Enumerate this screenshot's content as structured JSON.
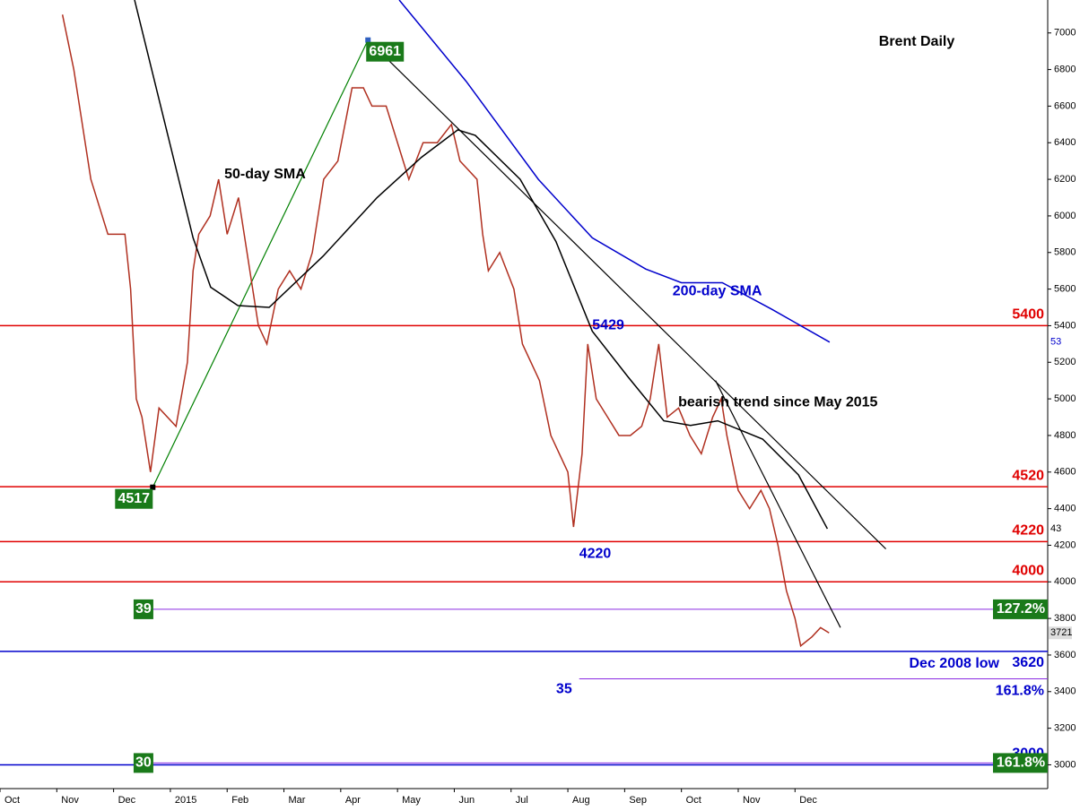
{
  "chart_data": {
    "type": "line",
    "title": "Brent Daily",
    "xlim": [
      0,
      18.45
    ],
    "xticks": [
      {
        "value": 0,
        "label": "Oct"
      },
      {
        "value": 1,
        "label": "Nov"
      },
      {
        "value": 2,
        "label": "Dec"
      },
      {
        "value": 3,
        "label": "2015"
      },
      {
        "value": 4,
        "label": "Feb"
      },
      {
        "value": 5,
        "label": "Mar"
      },
      {
        "value": 6,
        "label": "Apr"
      },
      {
        "value": 7,
        "label": "May"
      },
      {
        "value": 8,
        "label": "Jun"
      },
      {
        "value": 9,
        "label": "Jul"
      },
      {
        "value": 10,
        "label": "Aug"
      },
      {
        "value": 11,
        "label": "Sep"
      },
      {
        "value": 12,
        "label": "Oct"
      },
      {
        "value": 13,
        "label": "Nov"
      },
      {
        "value": 14,
        "label": "Dec"
      }
    ],
    "ylim": [
      2870,
      7180
    ],
    "yticks": [
      3000,
      3200,
      3400,
      3600,
      3800,
      4000,
      4200,
      4400,
      4600,
      4800,
      5000,
      5200,
      5400,
      5600,
      5800,
      6000,
      6200,
      6400,
      6600,
      6800,
      7000
    ],
    "grid": false,
    "series": [
      {
        "color": "#b03020",
        "x": [
          1.1,
          1.3,
          1.6,
          1.9,
          2.2,
          2.3,
          2.4,
          2.5,
          2.65,
          2.8,
          3.1,
          3.3,
          3.4,
          3.5,
          3.7,
          3.85,
          4.0,
          4.2,
          4.35,
          4.55,
          4.7,
          4.9,
          5.1,
          5.3,
          5.5,
          5.7,
          5.95,
          6.2,
          6.4,
          6.55,
          6.8,
          7.0,
          7.2,
          7.45,
          7.7,
          7.95,
          8.1,
          8.4,
          8.5,
          8.6,
          8.8,
          9.05,
          9.2,
          9.5,
          9.7,
          10.0,
          10.1,
          10.25,
          10.35,
          10.5,
          10.7,
          10.9,
          11.1,
          11.3,
          11.45,
          11.6,
          11.75,
          11.95,
          12.15,
          12.35,
          12.55,
          12.7,
          12.8,
          13.0,
          13.2,
          13.4,
          13.55,
          13.7,
          13.85,
          14.0,
          14.1,
          14.3,
          14.45,
          14.6
        ],
        "values": [
          7100,
          6800,
          6200,
          5900,
          5900,
          5600,
          5000,
          4900,
          4600,
          4950,
          4850,
          5200,
          5700,
          5900,
          6000,
          6200,
          5900,
          6100,
          5800,
          5400,
          5300,
          5600,
          5700,
          5600,
          5800,
          6200,
          6300,
          6700,
          6700,
          6600,
          6600,
          6400,
          6200,
          6400,
          6400,
          6500,
          6300,
          6200,
          5900,
          5700,
          5800,
          5600,
          5300,
          5100,
          4800,
          4600,
          4300,
          4700,
          5300,
          5000,
          4900,
          4800,
          4800,
          4850,
          5000,
          5300,
          4900,
          4950,
          4800,
          4700,
          4900,
          5000,
          4800,
          4500,
          4400,
          4500,
          4400,
          4200,
          3950,
          3800,
          3650,
          3700,
          3750,
          3721
        ]
      },
      {
        "name": "50-day SMA",
        "color": "#000000",
        "x": [
          2.37,
          3.4,
          3.71,
          4.19,
          4.74,
          5.69,
          6.64,
          7.42,
          8.06,
          8.37,
          9.16,
          9.79,
          10.43,
          11.06,
          11.69,
          12.16,
          12.64,
          13.43,
          14.06,
          14.57
        ],
        "values": [
          7180,
          5880,
          5610,
          5510,
          5500,
          5780,
          6100,
          6320,
          6470,
          6440,
          6200,
          5860,
          5370,
          5120,
          4880,
          4855,
          4880,
          4780,
          4585,
          4290
        ]
      },
      {
        "name": "200-day SMA",
        "color": "#0000cc",
        "x": [
          7.03,
          8.21,
          9.48,
          10.43,
          11.37,
          12.0,
          12.72,
          13.59,
          14.61
        ],
        "values": [
          7180,
          6735,
          6200,
          5880,
          5710,
          5635,
          5635,
          5490,
          5310
        ]
      }
    ],
    "trendlines": [
      {
        "color": "#000000",
        "x": [
          6.48,
          15.6
        ],
        "values": [
          6961,
          4180
        ]
      },
      {
        "color": "#008000",
        "x": [
          2.69,
          6.48
        ],
        "values": [
          4517,
          6961
        ]
      },
      {
        "color": "#000000",
        "x": [
          12.6,
          14.8
        ],
        "values": [
          5100,
          3750
        ]
      }
    ],
    "levels": [
      {
        "value": 5400,
        "label": "5400",
        "color": "#e00000"
      },
      {
        "value": 4520,
        "label": "4520",
        "color": "#e00000"
      },
      {
        "value": 4220,
        "label": "4220",
        "color": "#e00000"
      },
      {
        "value": 4000,
        "label": "4000",
        "color": "#e00000"
      },
      {
        "value": 3620,
        "label": "3620",
        "note": "Dec 2008 low",
        "color": "#0000cc"
      },
      {
        "value": 3000,
        "label": "3000",
        "color": "#0000cc"
      }
    ],
    "fib_levels": [
      {
        "value": 3850,
        "label": "127.2%",
        "tag": "39",
        "x_start": 2.7,
        "style": "box"
      },
      {
        "value": 3470,
        "label": "161.8%",
        "tag": "35",
        "x_start": 10.2,
        "style": "text"
      },
      {
        "value": 3010,
        "label": "161.8%",
        "tag": "30",
        "x_start": 2.7,
        "style": "box"
      }
    ],
    "annotations": [
      {
        "text": "6961",
        "x": 6.48,
        "y": 6961,
        "style": "box"
      },
      {
        "text": "4517",
        "x": 2.69,
        "y": 4517,
        "style": "box"
      },
      {
        "text": "5429",
        "x": 10.43,
        "y": 5429,
        "style": "text"
      },
      {
        "text": "4220",
        "x": 10.2,
        "y": 4220,
        "style": "text"
      },
      {
        "text": "bearish trend since May 2015",
        "x": 13.7,
        "y": 4980,
        "style": "plain"
      }
    ],
    "axis_tags": [
      {
        "label": "53",
        "value": 5310
      },
      {
        "label": "43",
        "value": 4290
      },
      {
        "label": "3721",
        "value": 3721
      }
    ]
  }
}
